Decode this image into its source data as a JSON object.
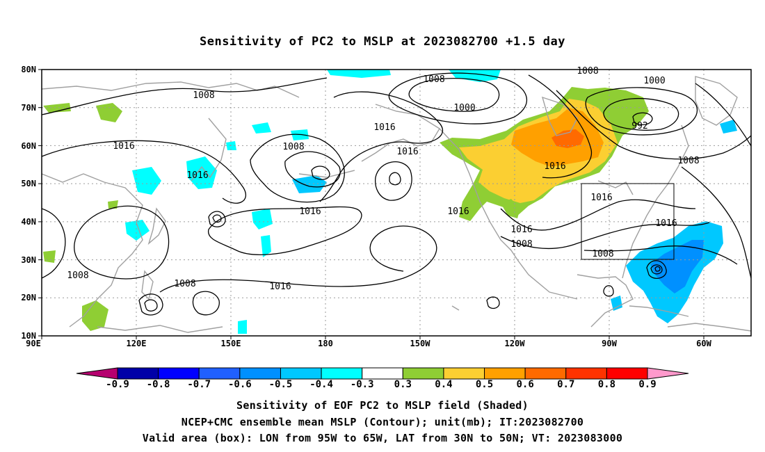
{
  "title": "Sensitivity of PC2 to MSLP at 2023082700 +1.5 day",
  "map": {
    "lat_labels": [
      "80N",
      "70N",
      "60N",
      "50N",
      "40N",
      "30N",
      "20N",
      "10N"
    ],
    "lon_labels": [
      "90E",
      "120E",
      "150E",
      "180",
      "150W",
      "120W",
      "90W",
      "60W"
    ],
    "contour_labels": [
      "1008",
      "1016",
      "1016",
      "1008",
      "1016",
      "1008",
      "1008",
      "1016",
      "1008",
      "1016",
      "1000",
      "1016",
      "1016",
      "1016",
      "1008",
      "1008",
      "1000",
      "992",
      "1008",
      "1016",
      "1016",
      "1008"
    ],
    "colors": {
      "contour": "#000000",
      "coastline": "#a0a0a0",
      "grid": "#9a9a9a",
      "valid_box": "#000000"
    },
    "valid_box": {
      "lon_from": "95W",
      "lon_to": "65W",
      "lat_from": "30N",
      "lat_to": "50N"
    }
  },
  "colorbar": {
    "labels": [
      "-0.9",
      "-0.8",
      "-0.7",
      "-0.6",
      "-0.5",
      "-0.4",
      "-0.3",
      "0.3",
      "0.4",
      "0.5",
      "0.6",
      "0.7",
      "0.8",
      "0.9"
    ],
    "colors": [
      "#b6006f",
      "#0000a8",
      "#0000ff",
      "#2060ff",
      "#0090ff",
      "#00c8ff",
      "#00ffff",
      "#ffffff",
      "#8fce34",
      "#fbcf32",
      "#ffa000",
      "#ff6a00",
      "#ff3300",
      "#ff0000",
      "#ff99cc"
    ]
  },
  "captions": [
    "Sensitivity of EOF PC2 to MSLP field (Shaded)",
    "NCEP+CMC ensemble mean MSLP (Contour); unit(mb); IT:2023082700",
    "Valid area (box): LON from 95W to 65W, LAT from 30N to 50N; VT: 2023083000"
  ]
}
